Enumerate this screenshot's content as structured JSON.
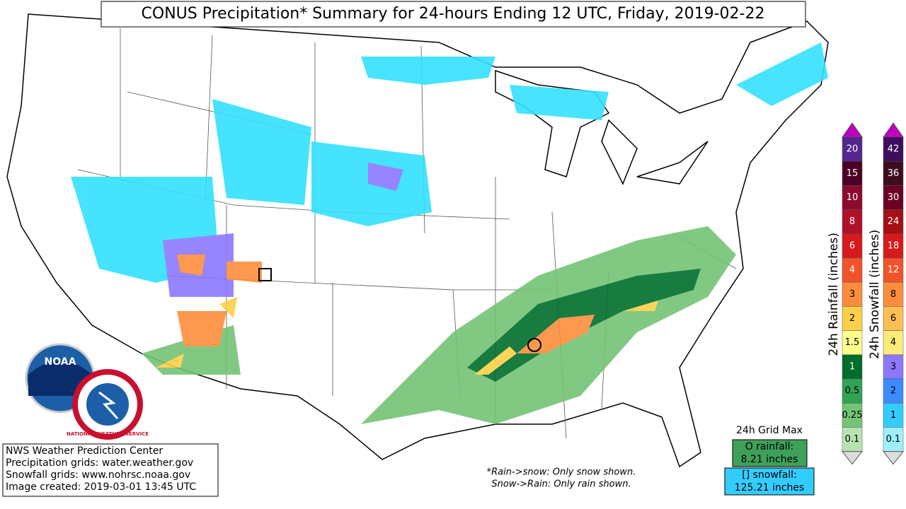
{
  "header": {
    "title": "CONUS Precipitation* Summary for 24-hours Ending 12 UTC, Friday, 2019-02-22"
  },
  "credits": [
    "NWS Weather Prediction Center",
    "Precipitation grids: water.weather.gov",
    "Snowfall grids: www.nohrsc.noaa.gov",
    "Image created: 2019-03-01 13:45 UTC"
  ],
  "notes": [
    "*Rain->snow: Only snow shown.",
    "Snow->Rain: Only rain shown."
  ],
  "grid_max": {
    "title": "24h Grid Max",
    "rainfall": [
      "O rainfall:",
      "8.21 inches"
    ],
    "snowfall": [
      "[] snowfall:",
      "125.21 inches"
    ]
  },
  "logos": {
    "noaa": "NOAA",
    "nws": "NATIONAL WEATHER SERVICE"
  },
  "rain_scale": {
    "label": "24h Rainfall (inches)",
    "levels": [
      {
        "label": "20",
        "color": "#54278f"
      },
      {
        "label": "15",
        "color": "#4a0026"
      },
      {
        "label": "10",
        "color": "#8c0a2e"
      },
      {
        "label": "8",
        "color": "#b0102a"
      },
      {
        "label": "6",
        "color": "#d7191c"
      },
      {
        "label": "4",
        "color": "#f2532a"
      },
      {
        "label": "3",
        "color": "#fd8d3c"
      },
      {
        "label": "2",
        "color": "#fdd049"
      },
      {
        "label": "1.5",
        "color": "#ffff8c"
      },
      {
        "label": "1",
        "color": "#006d2c"
      },
      {
        "label": "0.5",
        "color": "#31a354"
      },
      {
        "label": "0.25",
        "color": "#74c476"
      },
      {
        "label": "0.1",
        "color": "#b7e2b1"
      }
    ]
  },
  "snow_scale": {
    "label": "24h Snowfall (inches)",
    "levels": [
      {
        "label": "42",
        "color": "#3f0d5e"
      },
      {
        "label": "36",
        "color": "#3c0d1e"
      },
      {
        "label": "30",
        "color": "#6b0024"
      },
      {
        "label": "24",
        "color": "#a50f15"
      },
      {
        "label": "18",
        "color": "#d7191c"
      },
      {
        "label": "12",
        "color": "#f2532a"
      },
      {
        "label": "8",
        "color": "#fd8d3c"
      },
      {
        "label": "6",
        "color": "#fdbe54"
      },
      {
        "label": "4",
        "color": "#ffeb7a"
      },
      {
        "label": "3",
        "color": "#8c78ff"
      },
      {
        "label": "2",
        "color": "#3c8cff"
      },
      {
        "label": "1",
        "color": "#33ccff"
      },
      {
        "label": "0.1",
        "color": "#9ff0ff"
      }
    ]
  }
}
